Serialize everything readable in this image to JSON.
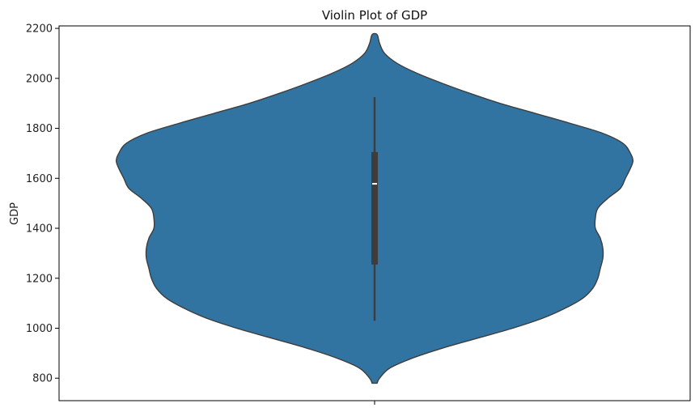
{
  "chart_data": {
    "type": "violin",
    "title": "Violin Plot of GDP",
    "xlabel": "",
    "ylabel": "GDP",
    "ylim": [
      710,
      2210
    ],
    "y_ticks": [
      800,
      1000,
      1200,
      1400,
      1600,
      1800,
      2000,
      2200
    ],
    "grid": false,
    "legend": "none",
    "violin": {
      "color": "#3274a1",
      "edge_color": "#3d3d3d",
      "y_min": 780,
      "y_max": 2175,
      "density_profile": [
        [
          780,
          0.01
        ],
        [
          800,
          0.02
        ],
        [
          840,
          0.06
        ],
        [
          880,
          0.15
        ],
        [
          920,
          0.27
        ],
        [
          960,
          0.41
        ],
        [
          1000,
          0.55
        ],
        [
          1040,
          0.67
        ],
        [
          1080,
          0.76
        ],
        [
          1120,
          0.83
        ],
        [
          1160,
          0.87
        ],
        [
          1200,
          0.89
        ],
        [
          1240,
          0.9
        ],
        [
          1280,
          0.91
        ],
        [
          1320,
          0.91
        ],
        [
          1360,
          0.9
        ],
        [
          1400,
          0.88
        ],
        [
          1440,
          0.88
        ],
        [
          1480,
          0.89
        ],
        [
          1520,
          0.93
        ],
        [
          1560,
          0.98
        ],
        [
          1600,
          1.0
        ],
        [
          1640,
          1.02
        ],
        [
          1670,
          1.03
        ],
        [
          1700,
          1.02
        ],
        [
          1740,
          0.99
        ],
        [
          1780,
          0.91
        ],
        [
          1820,
          0.78
        ],
        [
          1860,
          0.64
        ],
        [
          1900,
          0.5
        ],
        [
          1940,
          0.38
        ],
        [
          1980,
          0.27
        ],
        [
          2020,
          0.17
        ],
        [
          2060,
          0.09
        ],
        [
          2100,
          0.04
        ],
        [
          2140,
          0.02
        ],
        [
          2175,
          0.01
        ]
      ]
    },
    "box": {
      "q1": 1255,
      "median": 1578,
      "q3": 1705,
      "whisker_low": 1030,
      "whisker_high": 1925
    }
  }
}
